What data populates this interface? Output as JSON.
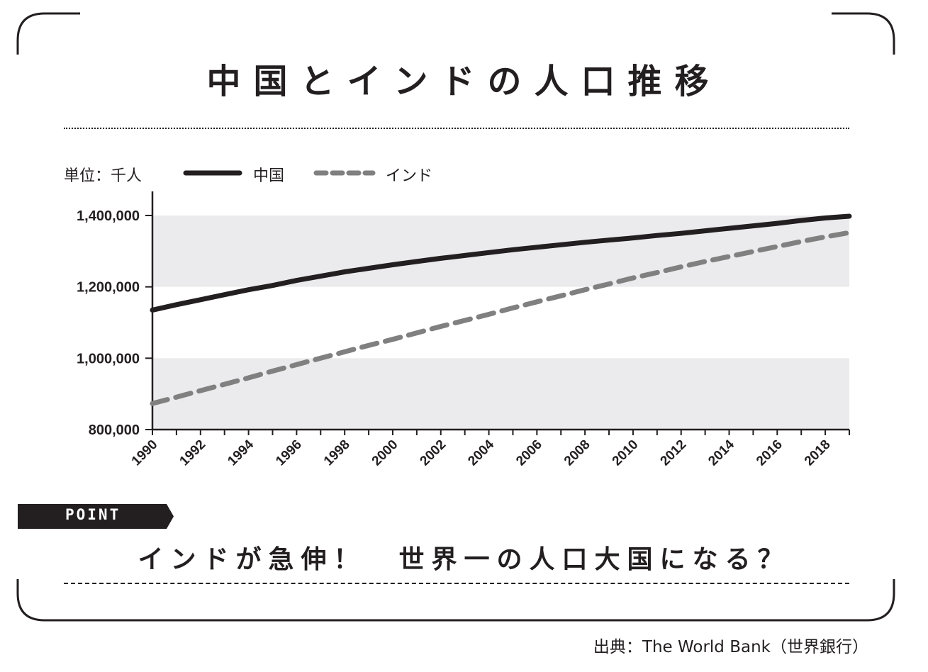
{
  "title": "中国とインドの人口推移",
  "unit_label": "単位：千人",
  "legend": {
    "china": "中国",
    "india": "インド"
  },
  "point_tag": "POINT",
  "headline": "インドが急伸！　世界一の人口大国になる？",
  "source": "出典：The World Bank（世界銀行）",
  "colors": {
    "china_line": "#231f20",
    "india_line": "#808080",
    "band": "#ebebed",
    "ink": "#231f20"
  },
  "chart_data": {
    "type": "line",
    "title": "中国とインドの人口推移",
    "ylabel": "単位：千人",
    "ylim": [
      800000,
      1400000
    ],
    "yticks": [
      "800,000",
      "1,000,000",
      "1,200,000",
      "1,400,000"
    ],
    "ytick_values": [
      800000,
      1000000,
      1200000,
      1400000
    ],
    "xlim": [
      1990,
      2019
    ],
    "xticks": [
      "1990",
      "1992",
      "1994",
      "1996",
      "1998",
      "2000",
      "2002",
      "2004",
      "2006",
      "2008",
      "2010",
      "2012",
      "2014",
      "2016",
      "2018"
    ],
    "x": [
      1990,
      1991,
      1992,
      1993,
      1994,
      1995,
      1996,
      1997,
      1998,
      1999,
      2000,
      2001,
      2002,
      2003,
      2004,
      2005,
      2006,
      2007,
      2008,
      2009,
      2010,
      2011,
      2012,
      2013,
      2014,
      2015,
      2016,
      2017,
      2018,
      2019
    ],
    "series": [
      {
        "name": "中国",
        "style": "solid",
        "values": [
          1135000,
          1150000,
          1164000,
          1178000,
          1192000,
          1204000,
          1218000,
          1230000,
          1242000,
          1252000,
          1262000,
          1271000,
          1280000,
          1288000,
          1296000,
          1304000,
          1311000,
          1318000,
          1325000,
          1331000,
          1337000,
          1344000,
          1350000,
          1357000,
          1364000,
          1371000,
          1378000,
          1386000,
          1393000,
          1398000
        ]
      },
      {
        "name": "インド",
        "style": "dashed",
        "values": [
          873000,
          891000,
          909000,
          927000,
          945000,
          964000,
          982000,
          1000000,
          1018000,
          1036000,
          1053000,
          1071000,
          1089000,
          1106000,
          1123000,
          1141000,
          1158000,
          1175000,
          1192000,
          1208000,
          1225000,
          1240000,
          1256000,
          1271000,
          1285000,
          1299000,
          1313000,
          1327000,
          1340000,
          1352000
        ]
      }
    ],
    "grid": false,
    "legend_position": "top-left"
  }
}
